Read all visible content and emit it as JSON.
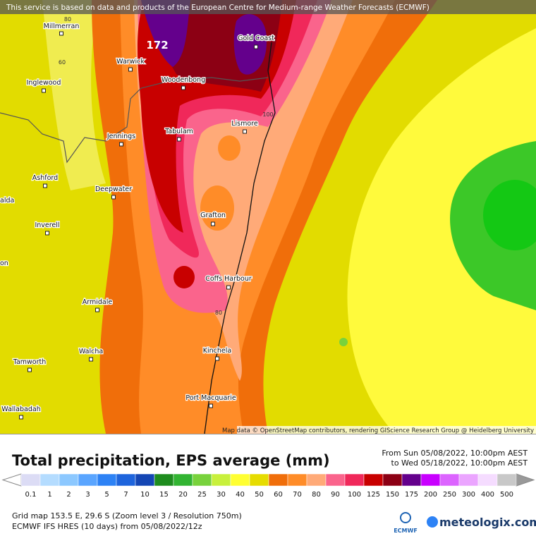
{
  "banner": "This service is based on data and products of the European Centre for Medium-range Weather Forecasts (ECMWF)",
  "map": {
    "max_label": "172",
    "contour_labels": [
      "80",
      "60",
      "100",
      "80"
    ],
    "places": [
      "Millmerran",
      "Gold Coast",
      "Warwick",
      "Woodenbong",
      "Inglewood",
      "Lismore",
      "Tabulam",
      "Jennings",
      "Ashford",
      "Deepwater",
      "Inverell",
      "Grafton",
      "Coffs Harbour",
      "Armidale",
      "Walcha",
      "Kinchela",
      "Tamworth",
      "Port Macquarie",
      "Wallabadah",
      "alda",
      "on"
    ],
    "attribution": "Map data © OpenStreetMap contributors, rendering GIScience Research Group @ Heidelberg University"
  },
  "header": {
    "title": "Total precipitation, EPS average (mm)",
    "from": "From Sun 05/08/2022, 10:00pm AEST",
    "to": "to Wed 05/18/2022, 10:00pm AEST"
  },
  "legend": {
    "labels": [
      0.1,
      1,
      2,
      3,
      5,
      7,
      10,
      15,
      20,
      25,
      30,
      40,
      50,
      60,
      70,
      80,
      90,
      100,
      125,
      150,
      175,
      200,
      250,
      300,
      400,
      500
    ],
    "colors": [
      "#dcdcf5",
      "#b4dcff",
      "#8cc8ff",
      "#5aa5ff",
      "#2d82f5",
      "#1e64dc",
      "#1446b4",
      "#1e8c1e",
      "#32b432",
      "#78d23c",
      "#c8f03c",
      "#ffff32",
      "#e6dc00",
      "#f06e0a",
      "#ff8c28",
      "#ffaa78",
      "#fa648c",
      "#f0285a",
      "#c80000",
      "#8c0014",
      "#64008c",
      "#c800ff",
      "#dc64ff",
      "#eba5ff",
      "#f5dcff",
      "#c8c8c8"
    ]
  },
  "footer": {
    "grid": "Grid map 153.5 E, 29.6 S (Zoom level 3 / Resolution 750m)",
    "model": "ECMWF IFS HRES (10 days) from 05/08/2022/12z"
  },
  "logos": {
    "ecmwf": "ECMWF",
    "meteologix": "meteologix.com"
  }
}
